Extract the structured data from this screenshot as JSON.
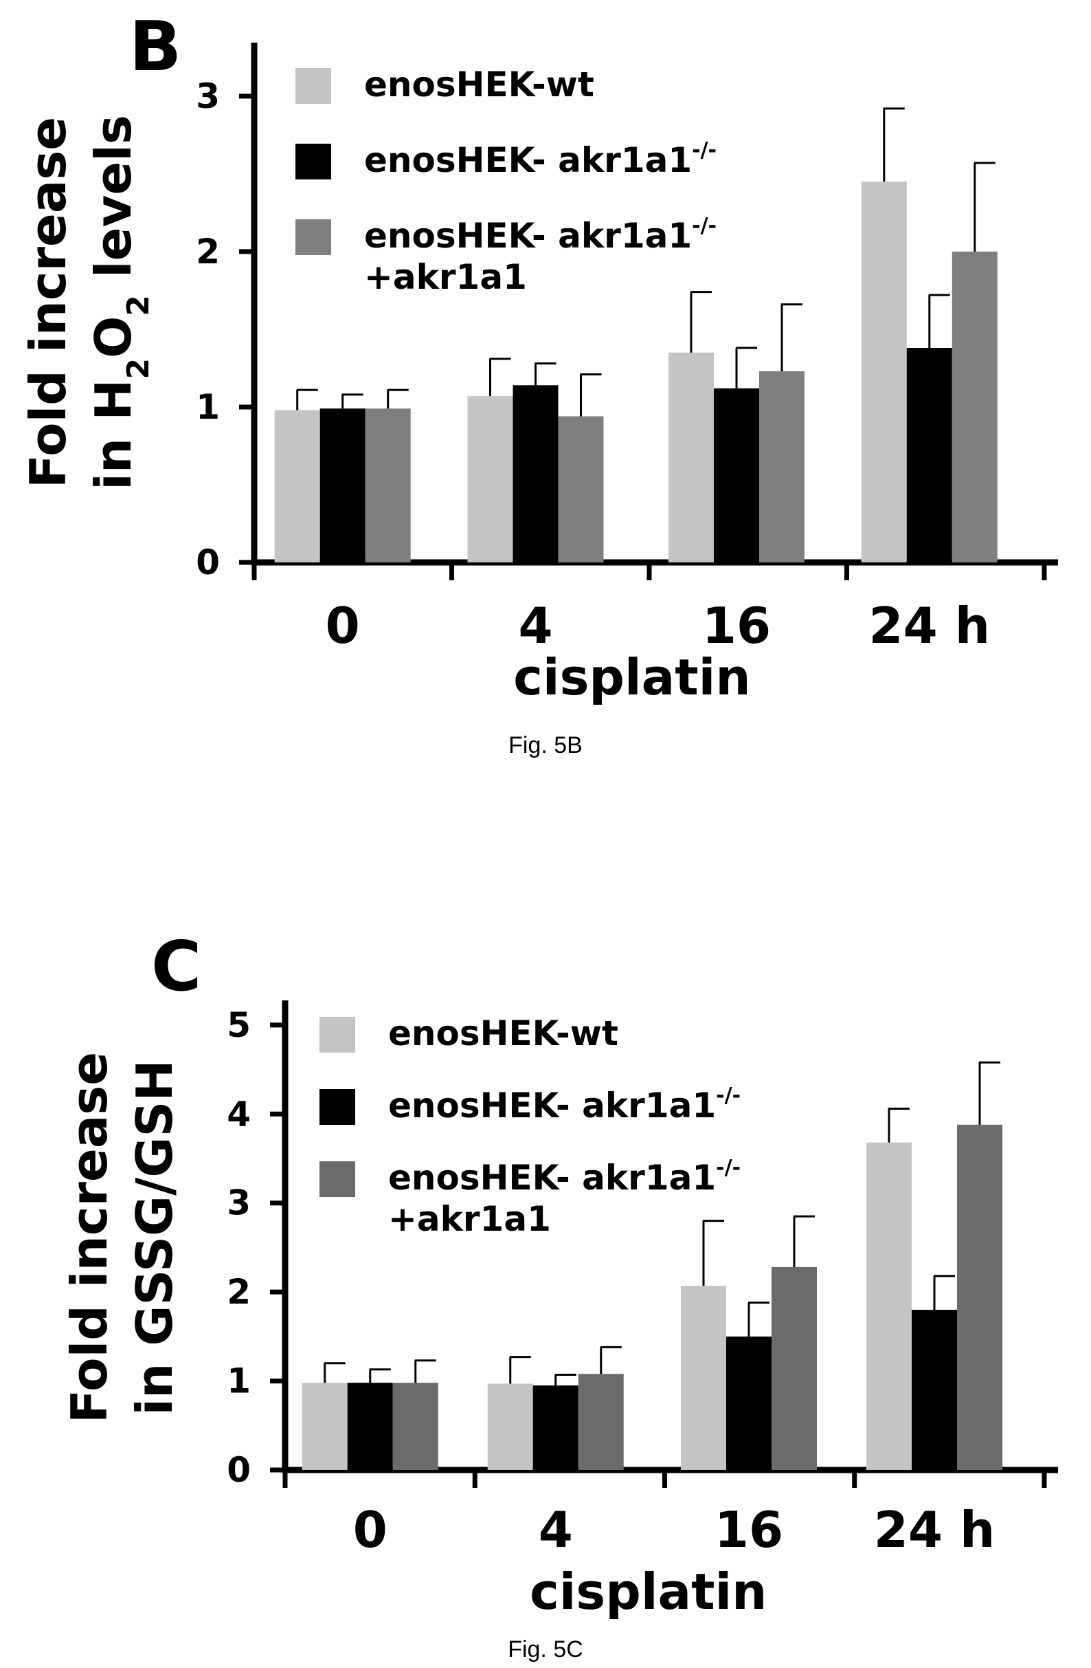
{
  "chart_data": [
    {
      "panel_label": "B",
      "type": "bar",
      "caption": "Fig. 5B",
      "ylabel_line1": "Fold increase",
      "ylabel_line2_prefix": "in H",
      "ylabel_sub1": "2",
      "ylabel_mid": "O",
      "ylabel_sub2": "2",
      "ylabel_suffix": " levels",
      "xlabel": "cisplatin",
      "categories": [
        "0",
        "4",
        "16",
        "24 h"
      ],
      "ylim": [
        0,
        3.3
      ],
      "yticks": [
        0,
        1,
        2,
        3
      ],
      "legend_position": "top-left",
      "series": [
        {
          "name": "enosHEK-wt",
          "name_sup": "",
          "name_line2": "",
          "color": "#c4c4c4",
          "values": [
            0.98,
            1.07,
            1.35,
            2.45
          ],
          "errors": [
            0.13,
            0.24,
            0.39,
            0.47
          ]
        },
        {
          "name": "enosHEK- akr1a1",
          "name_sup": "-/-",
          "name_line2": "",
          "color": "#000000",
          "values": [
            0.99,
            1.14,
            1.12,
            1.38
          ],
          "errors": [
            0.09,
            0.14,
            0.26,
            0.34
          ]
        },
        {
          "name": "enosHEK- akr1a1",
          "name_sup": "-/-",
          "name_line2": "+akr1a1",
          "color": "#7f7f7f",
          "values": [
            0.99,
            0.94,
            1.23,
            2.0
          ],
          "errors": [
            0.12,
            0.27,
            0.43,
            0.57
          ]
        }
      ]
    },
    {
      "panel_label": "C",
      "type": "bar",
      "caption": "Fig. 5C",
      "ylabel_line1": "Fold increase",
      "ylabel_line2_prefix": "in GSSG/GSH",
      "ylabel_sub1": "",
      "ylabel_mid": "",
      "ylabel_sub2": "",
      "ylabel_suffix": "",
      "xlabel": "cisplatin",
      "categories": [
        "0",
        "4",
        "16",
        "24 h"
      ],
      "ylim": [
        0,
        5.2
      ],
      "yticks": [
        0,
        1,
        2,
        3,
        4,
        5
      ],
      "legend_position": "top-left",
      "series": [
        {
          "name": "enosHEK-wt",
          "name_sup": "",
          "name_line2": "",
          "color": "#c4c4c4",
          "values": [
            0.98,
            0.97,
            2.07,
            3.68
          ],
          "errors": [
            0.22,
            0.3,
            0.73,
            0.38
          ]
        },
        {
          "name": "enosHEK- akr1a1",
          "name_sup": "-/-",
          "name_line2": "",
          "color": "#000000",
          "values": [
            0.98,
            0.95,
            1.5,
            1.8
          ],
          "errors": [
            0.15,
            0.12,
            0.38,
            0.38
          ]
        },
        {
          "name": "enosHEK- akr1a1",
          "name_sup": "-/-",
          "name_line2": "+akr1a1",
          "color": "#6b6b6b",
          "values": [
            0.98,
            1.08,
            2.28,
            3.88
          ],
          "errors": [
            0.25,
            0.3,
            0.57,
            0.7
          ]
        }
      ]
    }
  ]
}
